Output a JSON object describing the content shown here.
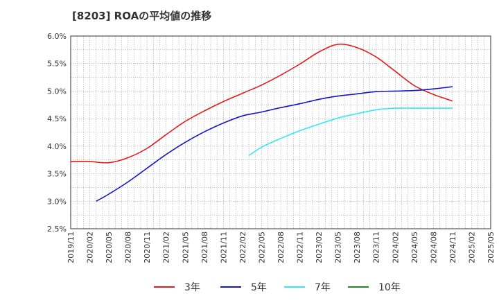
{
  "title": "[8203]  ROAの平均値の推移",
  "chart_data": {
    "type": "line",
    "title": "[8203]  ROAの平均値の推移",
    "xlabel": "",
    "ylabel": "",
    "ylim": [
      2.5,
      6.0
    ],
    "y_ticks": [
      "2.5%",
      "3.0%",
      "3.5%",
      "4.0%",
      "4.5%",
      "5.0%",
      "5.5%",
      "6.0%"
    ],
    "x_ticks": [
      "2019/11",
      "2020/02",
      "2020/05",
      "2020/08",
      "2020/11",
      "2021/02",
      "2021/05",
      "2021/08",
      "2021/11",
      "2022/02",
      "2022/05",
      "2022/08",
      "2022/11",
      "2023/02",
      "2023/05",
      "2023/08",
      "2023/11",
      "2024/02",
      "2024/05",
      "2024/08",
      "2024/11",
      "2025/02",
      "2025/05"
    ],
    "grid": true,
    "legend_position": "bottom",
    "series": [
      {
        "name": "3年",
        "color": "#e8191a",
        "points": [
          [
            "2019/11",
            3.72
          ],
          [
            "2020/02",
            3.72
          ],
          [
            "2020/05",
            3.7
          ],
          [
            "2020/08",
            3.79
          ],
          [
            "2020/11",
            3.96
          ],
          [
            "2021/02",
            4.21
          ],
          [
            "2021/05",
            4.45
          ],
          [
            "2021/08",
            4.64
          ],
          [
            "2021/11",
            4.81
          ],
          [
            "2022/02",
            4.96
          ],
          [
            "2022/05",
            5.11
          ],
          [
            "2022/08",
            5.29
          ],
          [
            "2022/11",
            5.49
          ],
          [
            "2023/02",
            5.71
          ],
          [
            "2023/05",
            5.85
          ],
          [
            "2023/08",
            5.79
          ],
          [
            "2023/11",
            5.62
          ],
          [
            "2024/02",
            5.36
          ],
          [
            "2024/05",
            5.1
          ],
          [
            "2024/08",
            4.94
          ],
          [
            "2024/11",
            4.82
          ]
        ]
      },
      {
        "name": "5年",
        "color": "#1414c8",
        "points": [
          [
            "2020/03",
            3.0
          ],
          [
            "2020/05",
            3.13
          ],
          [
            "2020/08",
            3.35
          ],
          [
            "2020/11",
            3.6
          ],
          [
            "2021/02",
            3.85
          ],
          [
            "2021/05",
            4.07
          ],
          [
            "2021/08",
            4.26
          ],
          [
            "2021/11",
            4.42
          ],
          [
            "2022/02",
            4.55
          ],
          [
            "2022/05",
            4.62
          ],
          [
            "2022/08",
            4.7
          ],
          [
            "2022/11",
            4.77
          ],
          [
            "2023/02",
            4.85
          ],
          [
            "2023/05",
            4.91
          ],
          [
            "2023/08",
            4.95
          ],
          [
            "2023/11",
            4.99
          ],
          [
            "2024/02",
            5.0
          ],
          [
            "2024/05",
            5.01
          ],
          [
            "2024/08",
            5.04
          ],
          [
            "2024/11",
            5.08
          ]
        ]
      },
      {
        "name": "7年",
        "color": "#33e8f0",
        "points": [
          [
            "2022/03",
            3.83
          ],
          [
            "2022/05",
            3.98
          ],
          [
            "2022/08",
            4.14
          ],
          [
            "2022/11",
            4.28
          ],
          [
            "2023/02",
            4.4
          ],
          [
            "2023/05",
            4.51
          ],
          [
            "2023/08",
            4.59
          ],
          [
            "2023/11",
            4.66
          ],
          [
            "2024/02",
            4.69
          ],
          [
            "2024/05",
            4.69
          ],
          [
            "2024/08",
            4.69
          ],
          [
            "2024/11",
            4.69
          ]
        ]
      },
      {
        "name": "10年",
        "color": "#1f8a1f",
        "points": []
      }
    ]
  }
}
